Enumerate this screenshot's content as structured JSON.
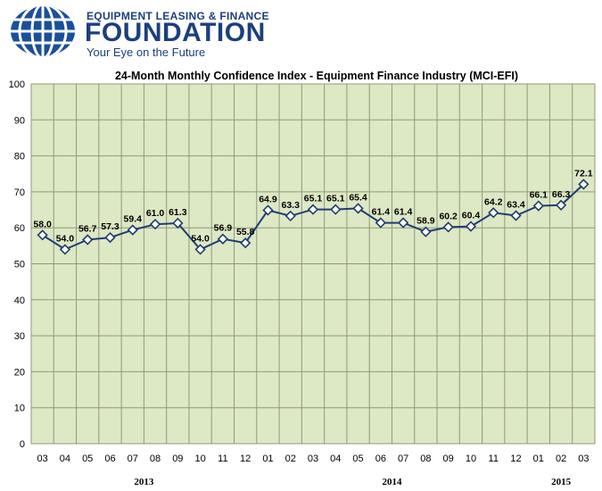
{
  "logo": {
    "org_top": "EQUIPMENT LEASING & FINANCE",
    "org_main": "FOUNDATION",
    "tagline": "Your Eye on the Future",
    "brand_color": "#1b3f7e"
  },
  "chart_data": {
    "type": "line",
    "title": "24-Month Monthly Confidence Index - Equipment Finance Industry (MCI-EFI)",
    "xlabel": "",
    "ylabel": "",
    "ylim": [
      0,
      100
    ],
    "yticks": [
      0,
      10,
      20,
      30,
      40,
      50,
      60,
      70,
      80,
      90,
      100
    ],
    "grid": true,
    "legend": "none",
    "categories": [
      "03",
      "04",
      "05",
      "06",
      "07",
      "08",
      "09",
      "10",
      "11",
      "12",
      "01",
      "02",
      "03",
      "04",
      "05",
      "06",
      "07",
      "08",
      "09",
      "10",
      "11",
      "12",
      "01",
      "02",
      "03"
    ],
    "values": [
      58.0,
      54.0,
      56.7,
      57.3,
      59.4,
      61.0,
      61.3,
      54.0,
      56.9,
      55.8,
      64.9,
      63.3,
      65.1,
      65.1,
      65.4,
      61.4,
      61.4,
      58.9,
      60.2,
      60.4,
      64.2,
      63.4,
      66.1,
      66.3,
      72.1
    ],
    "data_labels": [
      "58.0",
      "54.0",
      "56.7",
      "57.3",
      "59.4",
      "61.0",
      "61.3",
      "54.0",
      "56.9",
      "55.8",
      "64.9",
      "63.3",
      "65.1",
      "65.1",
      "65.4",
      "61.4",
      "61.4",
      "58.9",
      "60.2",
      "60.4",
      "64.2",
      "63.4",
      "66.1",
      "66.3",
      "72.1"
    ],
    "year_groups": [
      {
        "label": "2013",
        "from": 0,
        "to": 9
      },
      {
        "label": "2014",
        "from": 10,
        "to": 21
      },
      {
        "label": "2015",
        "from": 22,
        "to": 24
      }
    ],
    "colors": {
      "plot_bg": "#dde8c4",
      "grid": "#8f9a7c",
      "line": "#1f3d73",
      "marker_fill": "#ffffff"
    }
  }
}
